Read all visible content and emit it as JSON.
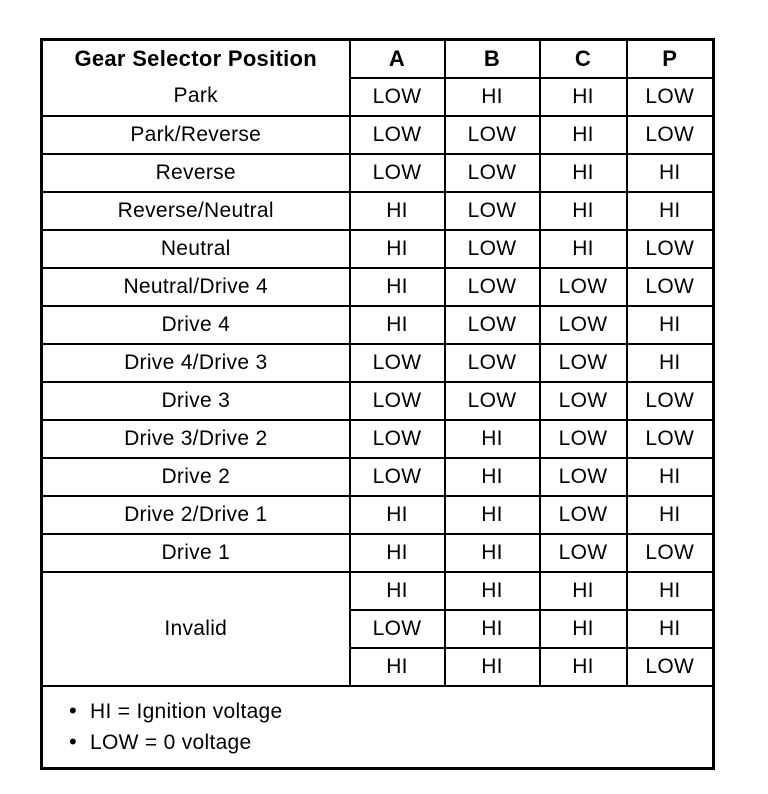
{
  "table": {
    "header": {
      "position_label": "Gear Selector Position",
      "columns": [
        "A",
        "B",
        "C",
        "P"
      ]
    },
    "rows": [
      {
        "position": "Park",
        "values": [
          "LOW",
          "HI",
          "HI",
          "LOW"
        ]
      },
      {
        "position": "Park/Reverse",
        "values": [
          "LOW",
          "LOW",
          "HI",
          "LOW"
        ]
      },
      {
        "position": "Reverse",
        "values": [
          "LOW",
          "LOW",
          "HI",
          "HI"
        ]
      },
      {
        "position": "Reverse/Neutral",
        "values": [
          "HI",
          "LOW",
          "HI",
          "HI"
        ]
      },
      {
        "position": "Neutral",
        "values": [
          "HI",
          "LOW",
          "HI",
          "LOW"
        ]
      },
      {
        "position": "Neutral/Drive 4",
        "values": [
          "HI",
          "LOW",
          "LOW",
          "LOW"
        ]
      },
      {
        "position": "Drive 4",
        "values": [
          "HI",
          "LOW",
          "LOW",
          "HI"
        ]
      },
      {
        "position": "Drive 4/Drive 3",
        "values": [
          "LOW",
          "LOW",
          "LOW",
          "HI"
        ]
      },
      {
        "position": "Drive 3",
        "values": [
          "LOW",
          "LOW",
          "LOW",
          "LOW"
        ]
      },
      {
        "position": "Drive 3/Drive 2",
        "values": [
          "LOW",
          "HI",
          "LOW",
          "LOW"
        ]
      },
      {
        "position": "Drive 2",
        "values": [
          "LOW",
          "HI",
          "LOW",
          "HI"
        ]
      },
      {
        "position": "Drive 2/Drive 1",
        "values": [
          "HI",
          "HI",
          "LOW",
          "HI"
        ]
      },
      {
        "position": "Drive 1",
        "values": [
          "HI",
          "HI",
          "LOW",
          "LOW"
        ]
      }
    ],
    "invalid_group": {
      "position": "Invalid",
      "rows": [
        {
          "values": [
            "HI",
            "HI",
            "HI",
            "HI"
          ]
        },
        {
          "values": [
            "LOW",
            "HI",
            "HI",
            "HI"
          ]
        },
        {
          "values": [
            "HI",
            "HI",
            "HI",
            "LOW"
          ]
        }
      ]
    },
    "notes": [
      {
        "bullet": "•",
        "text": "HI = Ignition voltage"
      },
      {
        "bullet": "•",
        "text": "LOW = 0 voltage"
      }
    ],
    "colors": {
      "border": "#000000",
      "text": "#000000",
      "background": "#ffffff"
    }
  }
}
